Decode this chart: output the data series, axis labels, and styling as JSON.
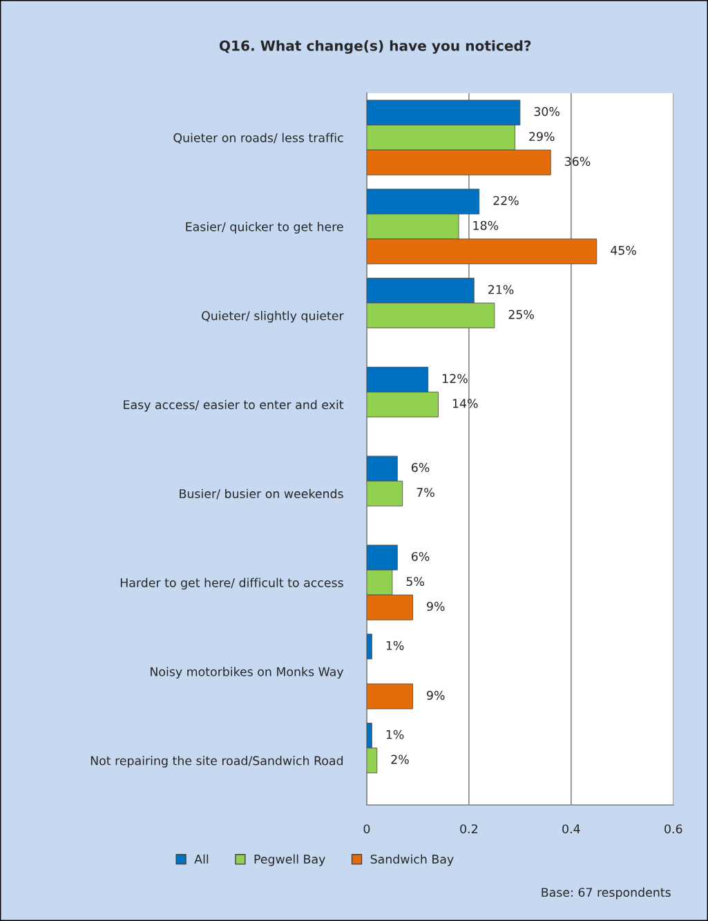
{
  "chart_data": {
    "type": "bar",
    "orientation": "horizontal",
    "title": "Q16. What change(s) have you noticed?",
    "categories": [
      "Quieter on roads/ less traffic",
      "Easier/ quicker to get here",
      "Quieter/ slightly quieter",
      "Easy access/ easier to enter and exit",
      "Busier/ busier on weekends",
      "Harder to get here/ difficult to access",
      "Noisy motorbikes on Monks Way",
      "Not repairing the site road/Sandwich Road"
    ],
    "series": [
      {
        "name": "All",
        "color": "#0070c0",
        "values": [
          0.3,
          0.22,
          0.21,
          0.12,
          0.06,
          0.06,
          0.01,
          0.01
        ],
        "value_labels": [
          "30%",
          "22%",
          "21%",
          "12%",
          "6%",
          "6%",
          "1%",
          "1%"
        ]
      },
      {
        "name": "Pegwell Bay",
        "color": "#92d050",
        "values": [
          0.29,
          0.18,
          0.25,
          0.14,
          0.07,
          0.05,
          null,
          0.02
        ],
        "value_labels": [
          "29%",
          "18%",
          "25%",
          "14%",
          "7%",
          "5%",
          null,
          "2%"
        ]
      },
      {
        "name": "Sandwich Bay",
        "color": "#e46c0a",
        "values": [
          0.36,
          0.45,
          null,
          null,
          null,
          0.09,
          0.09,
          null
        ],
        "value_labels": [
          "36%",
          "45%",
          null,
          null,
          null,
          "9%",
          "9%",
          null
        ]
      }
    ],
    "xlim": [
      0,
      0.6
    ],
    "xticks": [
      0,
      0.2,
      0.4,
      0.6
    ],
    "grid": "x",
    "legend": "bottom",
    "annotations": [
      "Base: 67 respondents"
    ]
  }
}
